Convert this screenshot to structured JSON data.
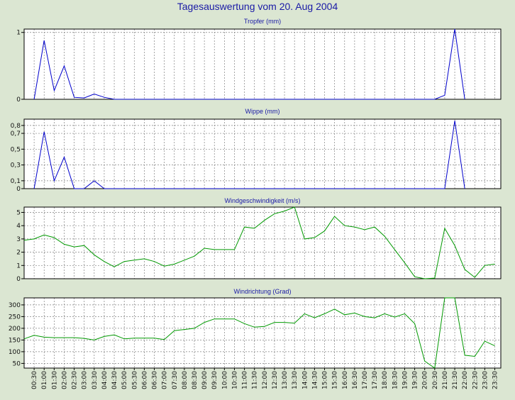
{
  "title": "Tagesauswertung vom 20. Aug 2004",
  "colors": {
    "background": "#dbe6d2",
    "title": "#1a1aa6",
    "blue_series": "#0000cc",
    "green_series": "#009900",
    "grid": "#808080"
  },
  "chart_data": [
    {
      "type": "line",
      "title": "Tropfer (mm)",
      "ylim": [
        0,
        1.05
      ],
      "yticks": [
        {
          "v": 0,
          "label": "0"
        },
        {
          "v": 1,
          "label": "1"
        }
      ],
      "grid": true,
      "series": [
        {
          "color": "#0000cc",
          "x": [
            0.5,
            1,
            1.5,
            2,
            2.5,
            3,
            3.5,
            4,
            4.5,
            5,
            20.5,
            21,
            21.5,
            22
          ],
          "y": [
            0,
            0.88,
            0.13,
            0.5,
            0.03,
            0.02,
            0.08,
            0.03,
            0,
            0,
            0,
            0.06,
            1.05,
            0
          ]
        }
      ]
    },
    {
      "type": "line",
      "title": "Wippe (mm)",
      "ylim": [
        0,
        0.88
      ],
      "yticks": [
        {
          "v": 0,
          "label": "0"
        },
        {
          "v": 0.1,
          "label": "0,1"
        },
        {
          "v": 0.3,
          "label": "0,3"
        },
        {
          "v": 0.5,
          "label": "0,5"
        },
        {
          "v": 0.7,
          "label": "0,7"
        },
        {
          "v": 0.8,
          "label": "0,8"
        }
      ],
      "grid": true,
      "series": [
        {
          "color": "#0000cc",
          "x": [
            0.5,
            1,
            1.5,
            2,
            2.5,
            3,
            3.5,
            4,
            4.5,
            20.5,
            21,
            21.5,
            22
          ],
          "y": [
            0,
            0.72,
            0.1,
            0.4,
            0,
            0,
            0.1,
            0,
            0,
            0,
            0,
            0.86,
            0
          ]
        }
      ]
    },
    {
      "type": "line",
      "title": "Windgeschwindigkeit (m/s)",
      "ylim": [
        0,
        5.4
      ],
      "yticks": [
        {
          "v": 0,
          "label": "0"
        },
        {
          "v": 1,
          "label": "1"
        },
        {
          "v": 2,
          "label": "2"
        },
        {
          "v": 3,
          "label": "3"
        },
        {
          "v": 4,
          "label": "4"
        },
        {
          "v": 5,
          "label": "5"
        }
      ],
      "grid": true,
      "series": [
        {
          "color": "#009900",
          "x": [
            0,
            0.5,
            1,
            1.5,
            2,
            2.5,
            3,
            3.5,
            4,
            4.5,
            5,
            5.5,
            6,
            6.5,
            7,
            7.5,
            8,
            8.5,
            9,
            9.5,
            10,
            10.5,
            11,
            11.5,
            12,
            12.5,
            13,
            13.5,
            14,
            14.5,
            15,
            15.5,
            16,
            16.5,
            17,
            17.5,
            18,
            18.5,
            19,
            19.5,
            20,
            20.5,
            21,
            21.5,
            22,
            22.5,
            23,
            23.5
          ],
          "y": [
            2.9,
            3.0,
            3.3,
            3.1,
            2.6,
            2.4,
            2.5,
            1.8,
            1.3,
            0.9,
            1.3,
            1.4,
            1.5,
            1.3,
            0.95,
            1.1,
            1.4,
            1.7,
            2.3,
            2.2,
            2.2,
            2.2,
            3.9,
            3.8,
            4.4,
            4.9,
            5.1,
            5.4,
            3.0,
            3.1,
            3.6,
            4.7,
            4.0,
            3.9,
            3.7,
            3.9,
            3.2,
            2.2,
            1.2,
            0.15,
            0.0,
            0.05,
            3.8,
            2.5,
            0.7,
            0.1,
            1.0,
            1.1
          ]
        }
      ]
    },
    {
      "type": "line",
      "title": "Windrichtung (Grad)",
      "ylim": [
        30,
        330
      ],
      "yticks": [
        {
          "v": 50,
          "label": "50"
        },
        {
          "v": 100,
          "label": "100"
        },
        {
          "v": 150,
          "label": "150"
        },
        {
          "v": 200,
          "label": "200"
        },
        {
          "v": 250,
          "label": "250"
        },
        {
          "v": 300,
          "label": "300"
        }
      ],
      "grid": true,
      "series": [
        {
          "color": "#009900",
          "x": [
            0,
            0.5,
            1,
            1.5,
            2,
            2.5,
            3,
            3.5,
            4,
            4.5,
            5,
            5.5,
            6,
            6.5,
            7,
            7.5,
            8,
            8.5,
            9,
            9.5,
            10,
            10.5,
            11,
            11.5,
            12,
            12.5,
            13,
            13.5,
            14,
            14.5,
            15,
            15.5,
            16,
            16.5,
            17,
            17.5,
            18,
            18.5,
            19,
            19.5,
            20,
            20.5,
            21,
            21.5,
            22,
            22.5,
            23,
            23.5
          ],
          "y": [
            155,
            170,
            162,
            160,
            160,
            160,
            157,
            150,
            165,
            172,
            155,
            158,
            158,
            158,
            152,
            190,
            195,
            200,
            225,
            240,
            240,
            240,
            220,
            205,
            208,
            225,
            225,
            222,
            262,
            245,
            262,
            282,
            258,
            265,
            250,
            245,
            262,
            248,
            262,
            220,
            60,
            30,
            330,
            330,
            85,
            80,
            145,
            125
          ]
        }
      ]
    }
  ],
  "x_axis": {
    "range": [
      0,
      23.8
    ],
    "tick_labels": [
      "00:30",
      "01:00",
      "01:30",
      "02:00",
      "02:30",
      "03:00",
      "03:30",
      "04:00",
      "04:30",
      "05:00",
      "05:30",
      "06:00",
      "06:30",
      "07:00",
      "07:30",
      "08:00",
      "08:30",
      "09:00",
      "09:30",
      "10:00",
      "10:30",
      "11:00",
      "11:30",
      "12:00",
      "12:30",
      "13:00",
      "13:30",
      "14:00",
      "14:30",
      "15:00",
      "15:30",
      "16:00",
      "16:30",
      "17:00",
      "17:30",
      "18:00",
      "18:30",
      "19:00",
      "19:30",
      "20:00",
      "20:30",
      "21:00",
      "21:30",
      "22:00",
      "22:30",
      "23:00",
      "23:30"
    ]
  }
}
